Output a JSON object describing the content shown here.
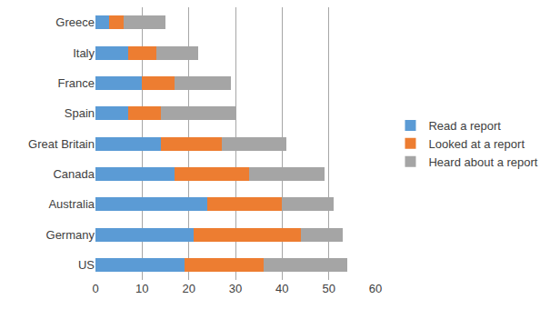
{
  "chart_data": {
    "type": "bar",
    "orientation": "horizontal",
    "stacked": true,
    "categories": [
      "US",
      "Germany",
      "Australia",
      "Canada",
      "Great Britain",
      "Spain",
      "France",
      "Italy",
      "Greece"
    ],
    "series": [
      {
        "name": "Read a report",
        "color": "#5b9bd5",
        "values": [
          19,
          21,
          24,
          17,
          14,
          7,
          10,
          7,
          3
        ]
      },
      {
        "name": "Looked at a report",
        "color": "#ed7d31",
        "values": [
          17,
          23,
          16,
          16,
          13,
          7,
          7,
          6,
          3
        ]
      },
      {
        "name": "Heard about a report",
        "color": "#a5a5a5",
        "values": [
          18,
          9,
          11,
          16,
          14,
          16,
          12,
          9,
          9
        ]
      }
    ],
    "xlim": [
      0,
      60
    ],
    "xticks": [
      0,
      10,
      20,
      30,
      40,
      50,
      60
    ],
    "grid": true,
    "legend": "right"
  }
}
